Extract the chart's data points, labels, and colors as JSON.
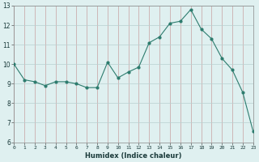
{
  "x": [
    0,
    1,
    2,
    3,
    4,
    5,
    6,
    7,
    8,
    9,
    10,
    11,
    12,
    13,
    14,
    15,
    16,
    17,
    18,
    19,
    20,
    21,
    22,
    23
  ],
  "y": [
    10.0,
    9.2,
    9.1,
    8.9,
    9.1,
    9.1,
    9.0,
    8.8,
    8.8,
    10.1,
    9.3,
    9.6,
    9.85,
    11.1,
    11.4,
    12.1,
    12.2,
    12.8,
    11.8,
    11.3,
    10.3,
    9.7,
    8.55,
    6.55
  ],
  "xlim": [
    0,
    23
  ],
  "ylim": [
    6,
    13
  ],
  "yticks": [
    6,
    7,
    8,
    9,
    10,
    11,
    12,
    13
  ],
  "xticks": [
    0,
    1,
    2,
    3,
    4,
    5,
    6,
    7,
    8,
    9,
    10,
    11,
    12,
    13,
    14,
    15,
    16,
    17,
    18,
    19,
    20,
    21,
    22,
    23
  ],
  "xlabel": "Humidex (Indice chaleur)",
  "line_color": "#2d7c6e",
  "marker_color": "#2d7c6e",
  "bg_color": "#dff0f0",
  "grid_color_v": "#c8a0a0",
  "grid_color_h": "#b8d0d0"
}
